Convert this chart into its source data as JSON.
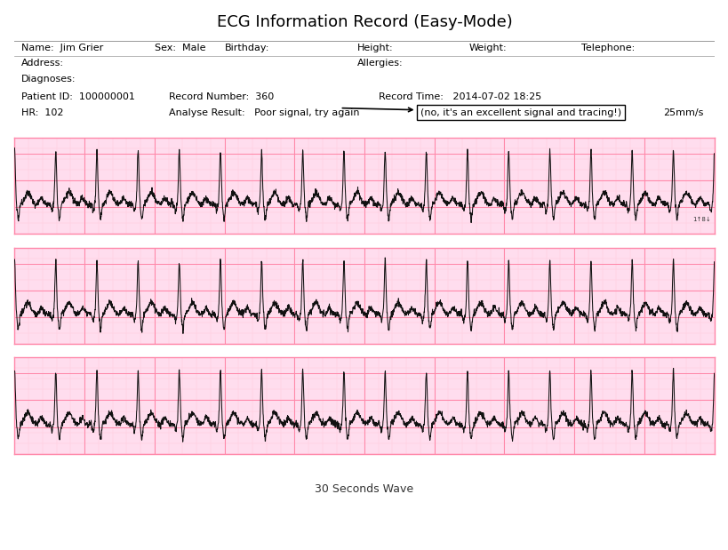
{
  "title": "ECG Information Record (Easy-Mode)",
  "name": "Jim Grier",
  "sex": "Male",
  "birthday": "",
  "height": "",
  "weight": "",
  "telephone": "",
  "address": "",
  "allergies": "",
  "diagnoses": "",
  "patient_id": "100000001",
  "record_number": "360",
  "record_time": "2014-07-02 18:25",
  "hr": "102",
  "analyse_result": "Poor signal, try again",
  "annotation": "(no, it's an excellent signal and tracing!)",
  "speed": "25mm/s",
  "footer": "30 Seconds Wave",
  "bg_color": "#ffffff",
  "grid_major_color": "#ff88aa",
  "grid_minor_color": "#ffccdd",
  "ecg_color": "#111111",
  "strip_bg": "#ffddee",
  "hr_bpm": 102
}
